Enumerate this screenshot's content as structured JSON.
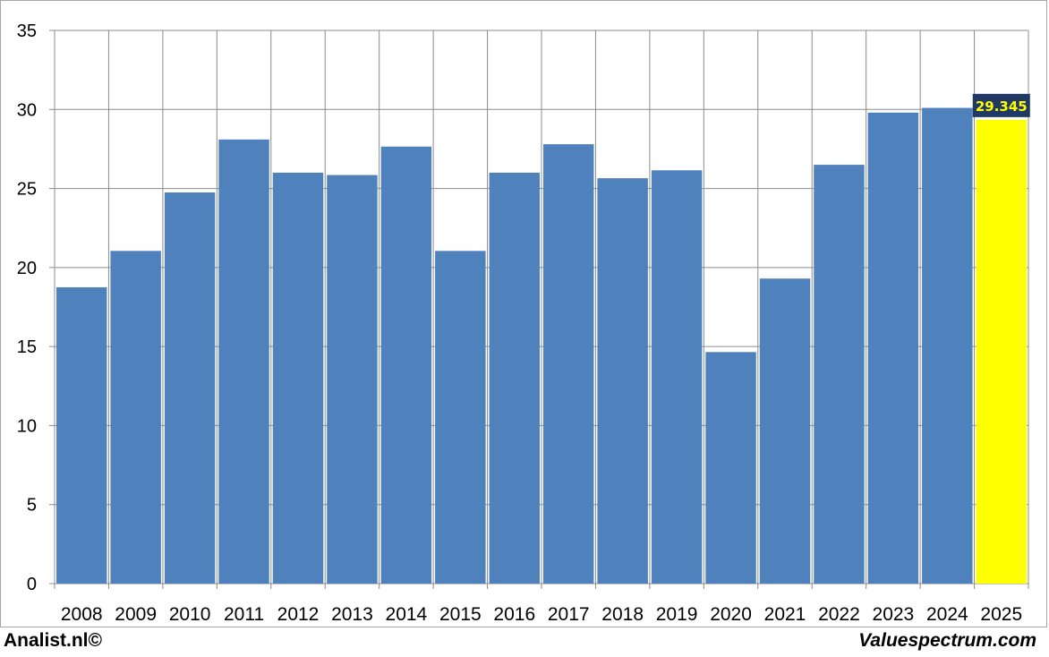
{
  "chart_data": {
    "type": "bar",
    "title": "",
    "xlabel": "",
    "ylabel": "",
    "categories": [
      "2008",
      "2009",
      "2010",
      "2011",
      "2012",
      "2013",
      "2014",
      "2015",
      "2016",
      "2017",
      "2018",
      "2019",
      "2020",
      "2021",
      "2022",
      "2023",
      "2024",
      "2025"
    ],
    "values": [
      18.75,
      21.05,
      24.75,
      28.1,
      26.0,
      25.85,
      27.65,
      21.05,
      26.0,
      27.8,
      25.65,
      26.15,
      14.65,
      19.3,
      26.5,
      29.8,
      30.1,
      29.345
    ],
    "ylim": [
      0,
      35
    ],
    "yticks": [
      0,
      5,
      10,
      15,
      20,
      25,
      30,
      35
    ],
    "grid": true,
    "legend": "none",
    "bar_color": "#4f81bd",
    "highlight_color": "#ffff00",
    "highlight_index": 17,
    "data_label": {
      "index": 17,
      "text": "29.345",
      "text_color": "#ffff00",
      "background_color": "#1f3864"
    }
  },
  "footer": {
    "left": "Analist.nl©",
    "right": "Valuespectrum.com"
  }
}
